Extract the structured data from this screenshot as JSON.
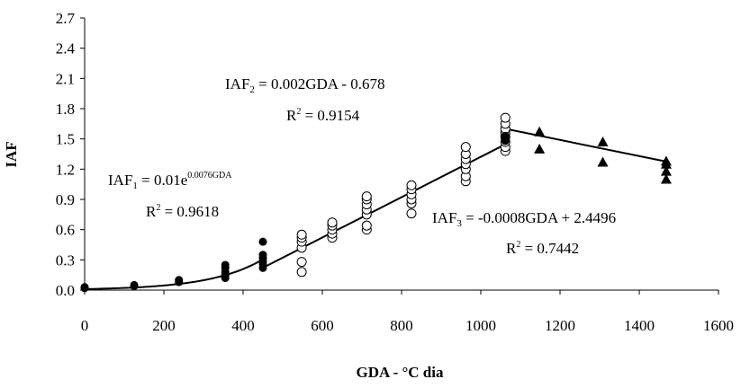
{
  "chart_data": {
    "type": "scatter",
    "xlabel": "GDA - °C dia",
    "ylabel": "IAF",
    "xlim": [
      0,
      1600
    ],
    "ylim": [
      0.0,
      2.7
    ],
    "xticks": [
      0,
      200,
      400,
      600,
      800,
      1000,
      1200,
      1400,
      1600
    ],
    "xtick_labels": [
      "0",
      "200",
      "400",
      "600",
      "800",
      "1000",
      "1200",
      "1400",
      "1600"
    ],
    "yticks": [
      0.0,
      0.3,
      0.6,
      0.9,
      1.2,
      1.5,
      1.8,
      2.1,
      2.4,
      2.7
    ],
    "ytick_labels": [
      "0.0",
      "0.3",
      "0.6",
      "0.9",
      "1.2",
      "1.5",
      "1.8",
      "2.1",
      "2.4",
      "2.7"
    ],
    "grid": false,
    "series": [
      {
        "marker": "filled-circle",
        "points": [
          [
            0,
            0.02
          ],
          [
            0,
            0.03
          ],
          [
            125,
            0.04
          ],
          [
            125,
            0.05
          ],
          [
            238,
            0.08
          ],
          [
            238,
            0.1
          ],
          [
            355,
            0.12
          ],
          [
            355,
            0.15
          ],
          [
            355,
            0.18
          ],
          [
            355,
            0.22
          ],
          [
            355,
            0.25
          ],
          [
            450,
            0.22
          ],
          [
            450,
            0.26
          ],
          [
            450,
            0.29
          ],
          [
            450,
            0.32
          ],
          [
            450,
            0.35
          ],
          [
            450,
            0.48
          ]
        ]
      },
      {
        "marker": "open-circle",
        "points": [
          [
            548,
            0.18
          ],
          [
            548,
            0.28
          ],
          [
            548,
            0.42
          ],
          [
            548,
            0.48
          ],
          [
            548,
            0.52
          ],
          [
            548,
            0.55
          ],
          [
            625,
            0.52
          ],
          [
            625,
            0.56
          ],
          [
            625,
            0.6
          ],
          [
            625,
            0.64
          ],
          [
            625,
            0.67
          ],
          [
            712,
            0.6
          ],
          [
            712,
            0.64
          ],
          [
            712,
            0.75
          ],
          [
            712,
            0.8
          ],
          [
            712,
            0.85
          ],
          [
            712,
            0.9
          ],
          [
            712,
            0.93
          ],
          [
            825,
            0.76
          ],
          [
            825,
            0.86
          ],
          [
            825,
            0.9
          ],
          [
            825,
            0.95
          ],
          [
            825,
            1.0
          ],
          [
            825,
            1.04
          ],
          [
            962,
            1.08
          ],
          [
            962,
            1.13
          ],
          [
            962,
            1.2
          ],
          [
            962,
            1.25
          ],
          [
            962,
            1.3
          ],
          [
            962,
            1.35
          ],
          [
            962,
            1.42
          ],
          [
            1062,
            1.38
          ],
          [
            1062,
            1.42
          ],
          [
            1062,
            1.47
          ],
          [
            1062,
            1.52
          ],
          [
            1062,
            1.56
          ],
          [
            1062,
            1.6
          ],
          [
            1062,
            1.65
          ],
          [
            1062,
            1.71
          ]
        ]
      },
      {
        "marker": "filled-circle",
        "points": [
          [
            1062,
            1.48
          ],
          [
            1062,
            1.5
          ],
          [
            1062,
            1.53
          ]
        ]
      },
      {
        "marker": "filled-triangle",
        "points": [
          [
            1148,
            1.4
          ],
          [
            1148,
            1.57
          ],
          [
            1308,
            1.27
          ],
          [
            1308,
            1.47
          ],
          [
            1468,
            1.1
          ],
          [
            1468,
            1.18
          ],
          [
            1468,
            1.25
          ],
          [
            1468,
            1.28
          ]
        ]
      }
    ],
    "fits": [
      {
        "kind": "exponential",
        "a": 0.01,
        "b": 0.0076,
        "x_range": [
          0,
          450
        ]
      },
      {
        "kind": "linear",
        "slope": 0.002,
        "intercept": -0.678,
        "x_range": [
          450,
          1062
        ]
      },
      {
        "kind": "linear",
        "slope": -0.0008,
        "intercept": 2.4496,
        "x_range": [
          1062,
          1468
        ]
      }
    ],
    "annotations": [
      {
        "id": "eq1",
        "var": "IAF",
        "sub": "1",
        "rhs": " = 0.01e",
        "sup": "0.0076GDA",
        "r2_label": "R",
        "r2_sup": "2",
        "r2_rhs": " = 0.9618"
      },
      {
        "id": "eq2",
        "var": "IAF",
        "sub": "2",
        "rhs": " = 0.002GDA - 0.678",
        "sup": "",
        "r2_label": "R",
        "r2_sup": "2",
        "r2_rhs": " = 0.9154"
      },
      {
        "id": "eq3",
        "var": "IAF",
        "sub": "3",
        "rhs": " = -0.0008GDA + 2.4496",
        "sup": "",
        "r2_label": "R",
        "r2_sup": "2",
        "r2_rhs": " = 0.7442"
      }
    ]
  }
}
